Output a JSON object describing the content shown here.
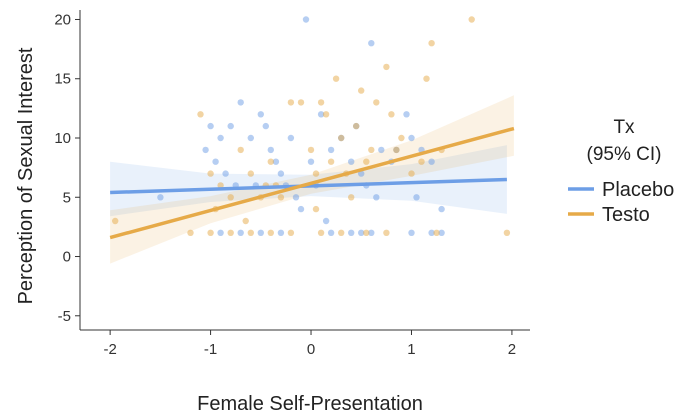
{
  "chart_data": {
    "type": "scatter",
    "title": "",
    "xlabel": "Female Self-Presentation",
    "ylabel": "Perception of Sexual Interest",
    "xlim": [
      -2.3,
      2.18
    ],
    "ylim": [
      -6.2,
      20.8
    ],
    "xticks": [
      -2,
      -1,
      0,
      1,
      2
    ],
    "yticks": [
      -5,
      0,
      5,
      10,
      15,
      20
    ],
    "grid": false,
    "legend": {
      "title_lines": [
        "Tx",
        "(95% CI)"
      ],
      "position": "right"
    },
    "series": [
      {
        "name": "Placebo",
        "color": "#6d9ee6",
        "points": [
          [
            -1.5,
            5
          ],
          [
            -1.05,
            9
          ],
          [
            -1.0,
            11
          ],
          [
            -0.95,
            8
          ],
          [
            -0.9,
            10
          ],
          [
            -0.85,
            7
          ],
          [
            -0.8,
            11
          ],
          [
            -0.7,
            13
          ],
          [
            -0.6,
            10
          ],
          [
            -0.5,
            12
          ],
          [
            -0.45,
            11
          ],
          [
            -0.4,
            9
          ],
          [
            -0.35,
            8
          ],
          [
            -0.3,
            7
          ],
          [
            -0.25,
            6
          ],
          [
            -0.2,
            10
          ],
          [
            -0.15,
            5
          ],
          [
            -0.1,
            4
          ],
          [
            -0.05,
            20
          ],
          [
            0.0,
            8
          ],
          [
            0.05,
            6
          ],
          [
            0.1,
            12
          ],
          [
            0.15,
            3
          ],
          [
            0.2,
            9
          ],
          [
            0.3,
            10
          ],
          [
            0.4,
            8
          ],
          [
            0.45,
            11
          ],
          [
            0.5,
            7
          ],
          [
            0.55,
            6
          ],
          [
            0.6,
            18
          ],
          [
            0.7,
            9
          ],
          [
            0.8,
            8
          ],
          [
            0.85,
            9
          ],
          [
            0.95,
            12
          ],
          [
            1.0,
            10
          ],
          [
            1.05,
            5
          ],
          [
            1.1,
            9
          ],
          [
            1.2,
            8
          ],
          [
            1.3,
            4
          ],
          [
            -0.9,
            2
          ],
          [
            -0.7,
            2
          ],
          [
            -0.5,
            2
          ],
          [
            -0.3,
            2
          ],
          [
            0.2,
            2
          ],
          [
            0.4,
            2
          ],
          [
            0.5,
            2
          ],
          [
            0.6,
            2
          ],
          [
            1.0,
            2
          ],
          [
            1.2,
            2
          ],
          [
            1.3,
            2
          ],
          [
            -0.75,
            6
          ],
          [
            -0.55,
            6
          ],
          [
            0.65,
            5
          ]
        ],
        "fit": {
          "x": [
            -2.0,
            1.95
          ],
          "y": [
            5.4,
            6.5
          ]
        },
        "ci": {
          "x": [
            -2.0,
            -1.0,
            0.0,
            1.0,
            1.95
          ],
          "lower": [
            3.4,
            4.6,
            5.1,
            4.7,
            3.6
          ],
          "upper": [
            8.0,
            7.0,
            6.9,
            7.8,
            9.4
          ]
        }
      },
      {
        "name": "Testo",
        "color": "#e6aa48",
        "points": [
          [
            -1.95,
            3
          ],
          [
            -1.1,
            12
          ],
          [
            -1.0,
            7
          ],
          [
            -0.95,
            4
          ],
          [
            -0.9,
            6
          ],
          [
            -0.8,
            5
          ],
          [
            -0.7,
            9
          ],
          [
            -0.6,
            7
          ],
          [
            -0.5,
            5
          ],
          [
            -0.45,
            6
          ],
          [
            -0.4,
            8
          ],
          [
            -0.3,
            5
          ],
          [
            -0.2,
            13
          ],
          [
            -0.1,
            13
          ],
          [
            0.0,
            9
          ],
          [
            0.05,
            7
          ],
          [
            0.1,
            13
          ],
          [
            0.15,
            12
          ],
          [
            0.2,
            8
          ],
          [
            0.25,
            15
          ],
          [
            0.3,
            10
          ],
          [
            0.35,
            7
          ],
          [
            0.4,
            5
          ],
          [
            0.45,
            11
          ],
          [
            0.5,
            14
          ],
          [
            0.55,
            8
          ],
          [
            0.6,
            9
          ],
          [
            0.65,
            13
          ],
          [
            0.75,
            16
          ],
          [
            0.8,
            12
          ],
          [
            0.85,
            9
          ],
          [
            0.9,
            10
          ],
          [
            1.0,
            7
          ],
          [
            1.1,
            8
          ],
          [
            1.15,
            15
          ],
          [
            1.2,
            18
          ],
          [
            1.3,
            9
          ],
          [
            1.6,
            20
          ],
          [
            1.95,
            2
          ],
          [
            -1.2,
            2
          ],
          [
            -1.0,
            2
          ],
          [
            -0.8,
            2
          ],
          [
            -0.6,
            2
          ],
          [
            -0.4,
            2
          ],
          [
            -0.2,
            2
          ],
          [
            0.1,
            2
          ],
          [
            0.3,
            2
          ],
          [
            0.55,
            2
          ],
          [
            0.75,
            2
          ],
          [
            1.25,
            2
          ],
          [
            -0.35,
            6
          ],
          [
            0.05,
            4
          ],
          [
            -0.65,
            3
          ]
        ],
        "fit": {
          "x": [
            -2.0,
            2.02
          ],
          "y": [
            1.6,
            10.8
          ]
        },
        "ci": {
          "x": [
            -2.0,
            -1.0,
            0.0,
            1.0,
            2.02
          ],
          "lower": [
            -0.6,
            2.8,
            5.3,
            6.8,
            8.5
          ],
          "upper": [
            3.9,
            5.1,
            6.9,
            9.8,
            13.6
          ]
        }
      }
    ]
  }
}
